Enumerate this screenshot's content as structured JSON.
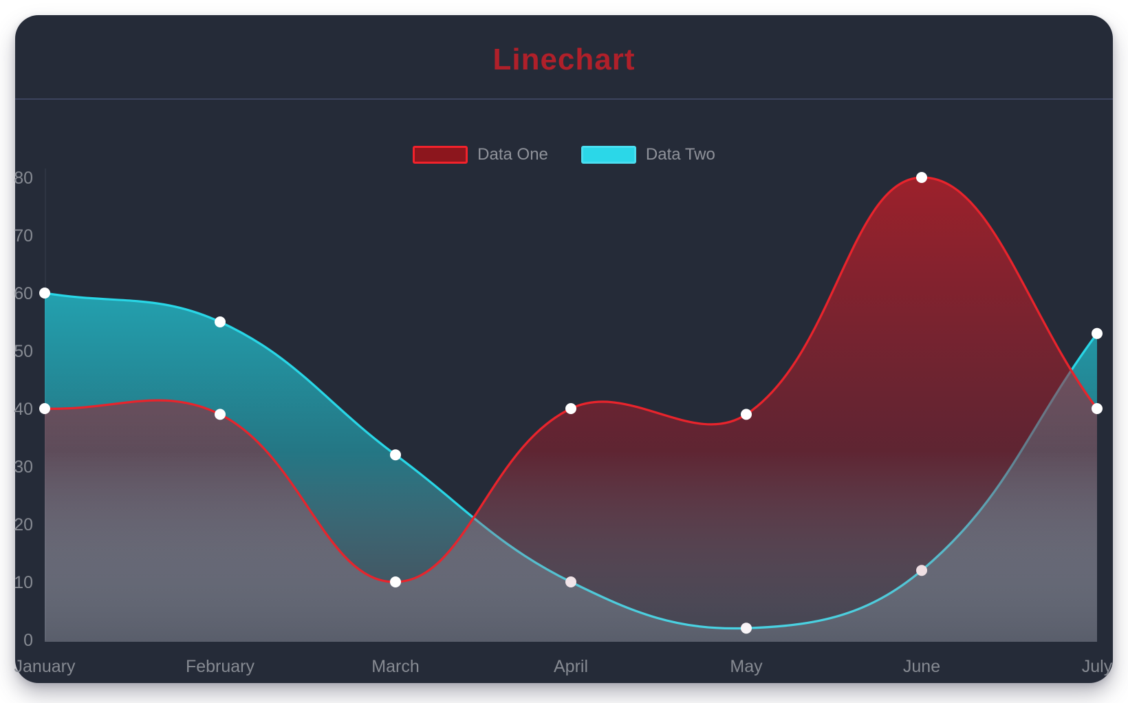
{
  "card": {
    "title": "Linechart",
    "colors": {
      "page_background": "#ffffff",
      "card_background": "#252b38",
      "title": "#b0202a",
      "divider": "#3c445e"
    }
  },
  "legend": {
    "text_color": "#8f929a",
    "items": [
      {
        "label": "Data One",
        "swatch_fill": "#8c161d",
        "swatch_border": "#f2222b"
      },
      {
        "label": "Data Two",
        "swatch_fill": "#2bd7e8",
        "swatch_border": "#4adef0"
      }
    ]
  },
  "chart_data": {
    "type": "line",
    "title": "Linechart",
    "categories": [
      "January",
      "February",
      "March",
      "April",
      "May",
      "June",
      "July"
    ],
    "series": [
      {
        "name": "Data One",
        "values": [
          40,
          39,
          10,
          40,
          39,
          80,
          40
        ],
        "line_color": "#e8242c",
        "point_color": "#ffffff",
        "fill_gradient": [
          [
            "0",
            "rgba(201,29,38,0.75)"
          ],
          [
            "0.6",
            "rgba(158,30,44,0.48)"
          ],
          [
            "1",
            "rgba(220,205,220,0.16)"
          ]
        ]
      },
      {
        "name": "Data Two",
        "values": [
          60,
          55,
          32,
          10,
          2,
          12,
          53
        ],
        "line_color": "#29d6e6",
        "point_color": "#ffffff",
        "fill_gradient": [
          [
            "0",
            "rgba(34,211,226,0.90)"
          ],
          [
            "0.6",
            "rgba(34,211,226,0.45)"
          ],
          [
            "1",
            "rgba(205,225,235,0.16)"
          ]
        ]
      }
    ],
    "xlabel": "",
    "ylabel": "",
    "ylim": [
      0,
      80
    ],
    "y_ticks": [
      0,
      10,
      20,
      30,
      40,
      50,
      60,
      70,
      80
    ],
    "grid": false,
    "legend_position": "top",
    "curve_tension": 0.4,
    "axis_label_color": "#868a92",
    "axis_line_color": "#2e3543"
  }
}
